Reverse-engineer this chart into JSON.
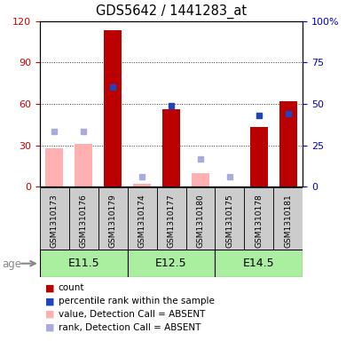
{
  "title": "GDS5642 / 1441283_at",
  "samples": [
    "GSM1310173",
    "GSM1310176",
    "GSM1310179",
    "GSM1310174",
    "GSM1310177",
    "GSM1310180",
    "GSM1310175",
    "GSM1310178",
    "GSM1310181"
  ],
  "age_groups": [
    {
      "label": "E11.5",
      "start": 0,
      "end": 3
    },
    {
      "label": "E12.5",
      "start": 3,
      "end": 6
    },
    {
      "label": "E14.5",
      "start": 6,
      "end": 9
    }
  ],
  "red_bars": [
    null,
    null,
    113,
    null,
    56,
    null,
    null,
    43,
    62
  ],
  "blue_squares": [
    null,
    null,
    60,
    null,
    49,
    null,
    null,
    43,
    44
  ],
  "pink_bars": [
    28,
    31,
    null,
    2,
    null,
    10,
    null,
    null,
    null
  ],
  "lavender_squares": [
    40,
    40,
    null,
    7,
    null,
    20,
    7,
    null,
    null
  ],
  "ylim_left": [
    0,
    120
  ],
  "ylim_right": [
    0,
    100
  ],
  "yticks_left": [
    0,
    30,
    60,
    90,
    120
  ],
  "yticks_right": [
    0,
    25,
    50,
    75,
    100
  ],
  "ylabel_left_color": "#cc0000",
  "ylabel_right_color": "#0000cc",
  "bar_width": 0.6,
  "red_color": "#bb0000",
  "blue_color": "#2244bb",
  "pink_color": "#ffb0b0",
  "lavender_color": "#aaaadd",
  "age_bg_color": "#aaeea0",
  "sample_bg_color": "#cccccc",
  "grid_color": "#333333",
  "legend": [
    {
      "color": "#bb0000",
      "label": "count"
    },
    {
      "color": "#2244bb",
      "label": "percentile rank within the sample"
    },
    {
      "color": "#ffb0b0",
      "label": "value, Detection Call = ABSENT"
    },
    {
      "color": "#aaaadd",
      "label": "rank, Detection Call = ABSENT"
    }
  ]
}
